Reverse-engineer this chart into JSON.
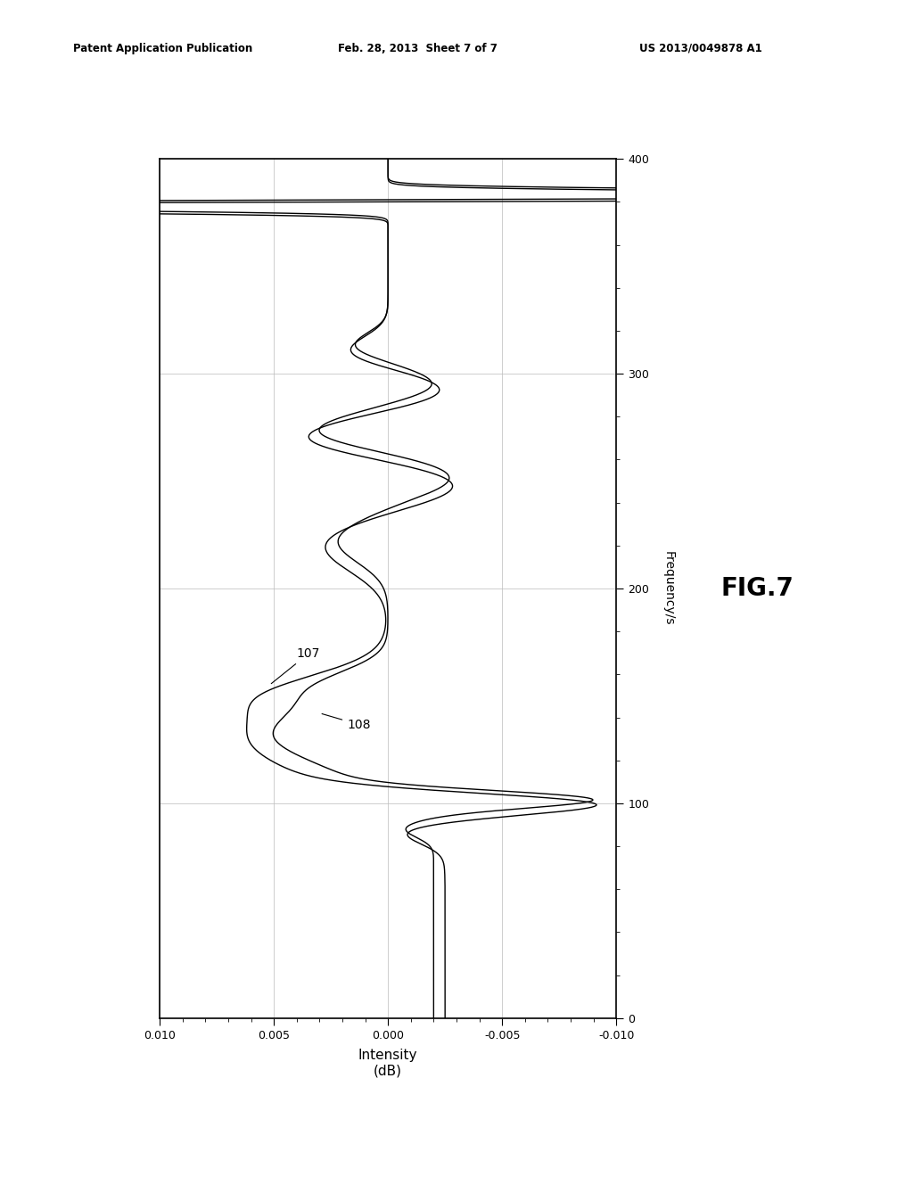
{
  "header_left": "Patent Application Publication",
  "header_center": "Feb. 28, 2013  Sheet 7 of 7",
  "header_right": "US 2013/0049878 A1",
  "fig_label": "FIG.7",
  "xlabel_line1": "Intensity",
  "xlabel_line2": "(dB)",
  "ylabel": "Frequency/s",
  "x_min": 0.01,
  "x_max": -0.01,
  "y_min": 0,
  "y_max": 400,
  "x_ticks": [
    0.01,
    0.005,
    0.0,
    -0.005,
    -0.01
  ],
  "x_tick_labels": [
    "0.010",
    "0.005",
    "0.000",
    "-0.005",
    "-0.010"
  ],
  "y_ticks": [
    0,
    100,
    200,
    300,
    400
  ],
  "label_107": "107",
  "label_108": "108",
  "background_color": "#ffffff",
  "line_color": "#000000",
  "grid_color": "#bbbbbb"
}
